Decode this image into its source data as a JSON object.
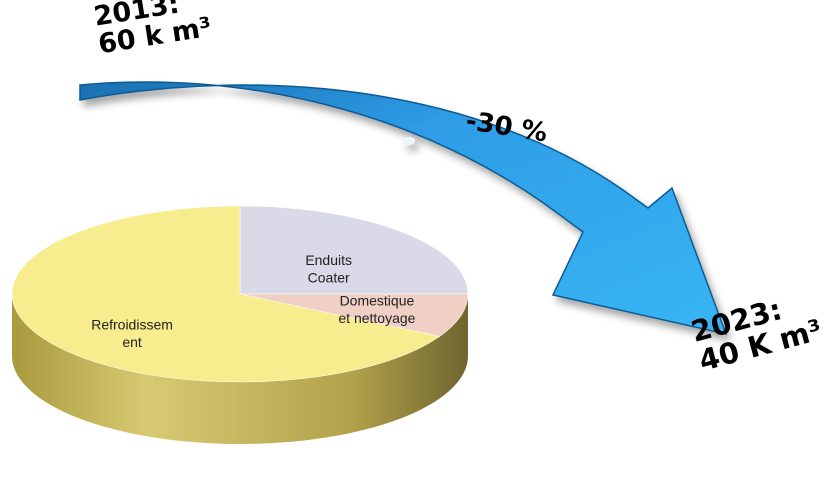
{
  "annotations": {
    "start": {
      "line1": "2013:",
      "line2": "60 k m³"
    },
    "reduction": "-30 %",
    "end": {
      "line1": "2023:",
      "line2": "40 K m³"
    }
  },
  "chart_data": {
    "type": "pie",
    "title": "",
    "slices": [
      {
        "label": "Enduits Coater",
        "lines": [
          "Enduits",
          "Coater"
        ],
        "value": 25,
        "color": "#d9d9e8"
      },
      {
        "label": "Refroidissement",
        "lines": [
          "Refroidissem",
          "ent"
        ],
        "value": 67,
        "color": "#f7ec8e"
      },
      {
        "label": "Domestique et nettoyage",
        "lines": [
          "Domestique",
          "et nettoyage"
        ],
        "value": 8,
        "color": "#f0d0c4"
      }
    ],
    "legend": "none"
  },
  "colors": {
    "arrow": "#2f9fe6",
    "arrow_dark": "#1a6fae",
    "pie_side": "#b5a349"
  }
}
